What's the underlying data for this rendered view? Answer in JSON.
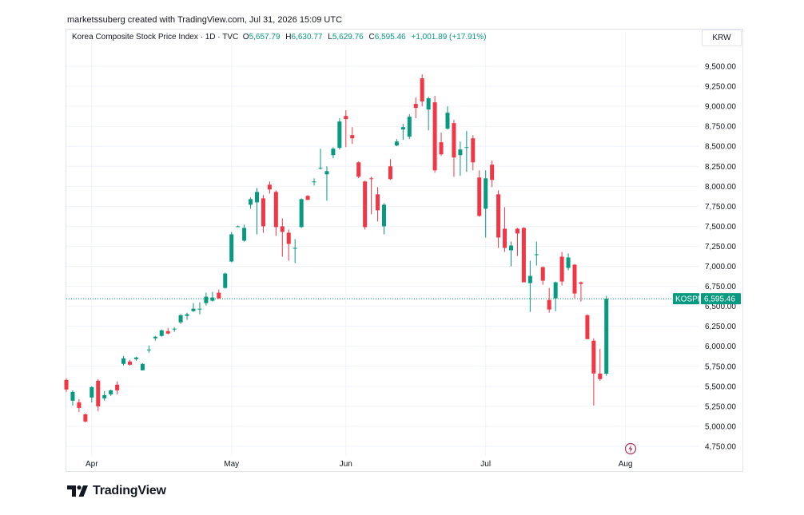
{
  "header": {
    "creator_text": "marketssuberg created with TradingView.com, Jul 31, 2026 15:09 UTC"
  },
  "legend": {
    "symbol_text": "Korea Composite Stock Price Index · 1D · TVC",
    "o_label": "O",
    "o_value": "5,657.79",
    "h_label": "H",
    "h_value": "6,630.77",
    "l_label": "L",
    "l_value": "5,629.76",
    "c_label": "C",
    "c_value": "6,595.46",
    "change": "+1,001.89 (+17.91%)"
  },
  "currency": "KRW",
  "last_price": {
    "ticker": "KOSPI",
    "value": "6,595.46",
    "color": "#089981"
  },
  "footer": {
    "brand": "TradingView"
  },
  "colors": {
    "up": "#089981",
    "down": "#f23645",
    "grid": "#f0f3fa",
    "axis_text": "#131722"
  },
  "chart_data": {
    "type": "candlestick",
    "title": "Korea Composite Stock Price Index · 1D · TVC",
    "y_unit": "KRW",
    "ylim": [
      4640,
      9730
    ],
    "y_ticks": [
      4750,
      5000,
      5250,
      5500,
      5750,
      6000,
      6250,
      6500,
      6750,
      7000,
      7250,
      7500,
      7750,
      8000,
      8250,
      8500,
      8750,
      9000,
      9250,
      9500
    ],
    "y_tick_labels": [
      "4,750.00",
      "5,000.00",
      "5,250.00",
      "5,500.00",
      "5,750.00",
      "6,000.00",
      "6,250.00",
      "6,500.00",
      "6,750.00",
      "7,000.00",
      "7,250.00",
      "7,500.00",
      "7,750.00",
      "8,000.00",
      "8,250.00",
      "8,500.00",
      "8,750.00",
      "9,000.00",
      "9,250.00",
      "9,500.00"
    ],
    "x_ticks": [
      {
        "label": "Apr",
        "index": 4
      },
      {
        "label": "May",
        "index": 26
      },
      {
        "label": "Jun",
        "index": 44
      },
      {
        "label": "Jul",
        "index": 66
      },
      {
        "label": "Aug",
        "index": 88
      }
    ],
    "candles": [
      {
        "o": 5580,
        "h": 5600,
        "l": 5430,
        "c": 5460
      },
      {
        "o": 5320,
        "h": 5450,
        "l": 5260,
        "c": 5430
      },
      {
        "o": 5300,
        "h": 5340,
        "l": 5180,
        "c": 5230
      },
      {
        "o": 5150,
        "h": 5160,
        "l": 5050,
        "c": 5060
      },
      {
        "o": 5360,
        "h": 5500,
        "l": 5300,
        "c": 5490
      },
      {
        "o": 5570,
        "h": 5590,
        "l": 5190,
        "c": 5250
      },
      {
        "o": 5350,
        "h": 5440,
        "l": 5320,
        "c": 5390
      },
      {
        "o": 5400,
        "h": 5460,
        "l": 5380,
        "c": 5450
      },
      {
        "o": 5520,
        "h": 5560,
        "l": 5400,
        "c": 5450
      },
      {
        "o": 5780,
        "h": 5880,
        "l": 5760,
        "c": 5850
      },
      {
        "o": 5810,
        "h": 5830,
        "l": 5760,
        "c": 5770
      },
      {
        "o": 5840,
        "h": 5870,
        "l": 5820,
        "c": 5860
      },
      {
        "o": 5700,
        "h": 5790,
        "l": 5700,
        "c": 5780
      },
      {
        "o": 5950,
        "h": 6010,
        "l": 5920,
        "c": 5960
      },
      {
        "o": 6100,
        "h": 6130,
        "l": 6070,
        "c": 6120
      },
      {
        "o": 6130,
        "h": 6210,
        "l": 6120,
        "c": 6200
      },
      {
        "o": 6190,
        "h": 6230,
        "l": 6150,
        "c": 6160
      },
      {
        "o": 6220,
        "h": 6240,
        "l": 6180,
        "c": 6220
      },
      {
        "o": 6300,
        "h": 6400,
        "l": 6280,
        "c": 6390
      },
      {
        "o": 6380,
        "h": 6420,
        "l": 6330,
        "c": 6400
      },
      {
        "o": 6440,
        "h": 6540,
        "l": 6430,
        "c": 6470
      },
      {
        "o": 6460,
        "h": 6550,
        "l": 6400,
        "c": 6470
      },
      {
        "o": 6540,
        "h": 6670,
        "l": 6510,
        "c": 6620
      },
      {
        "o": 6570,
        "h": 6680,
        "l": 6560,
        "c": 6610
      },
      {
        "o": 6670,
        "h": 6710,
        "l": 6590,
        "c": 6600
      },
      {
        "o": 6730,
        "h": 6920,
        "l": 6720,
        "c": 6910
      },
      {
        "o": 7060,
        "h": 7430,
        "l": 7050,
        "c": 7400
      },
      {
        "o": 7500,
        "h": 7510,
        "l": 7490,
        "c": 7500
      },
      {
        "o": 7320,
        "h": 7520,
        "l": 7310,
        "c": 7480
      },
      {
        "o": 7770,
        "h": 7860,
        "l": 7720,
        "c": 7840
      },
      {
        "o": 7800,
        "h": 7980,
        "l": 7400,
        "c": 7930
      },
      {
        "o": 7850,
        "h": 7890,
        "l": 7420,
        "c": 7500
      },
      {
        "o": 8020,
        "h": 8060,
        "l": 7910,
        "c": 7960
      },
      {
        "o": 7930,
        "h": 7950,
        "l": 7380,
        "c": 7490
      },
      {
        "o": 7500,
        "h": 7600,
        "l": 7120,
        "c": 7430
      },
      {
        "o": 7420,
        "h": 7460,
        "l": 7070,
        "c": 7280
      },
      {
        "o": 7230,
        "h": 7340,
        "l": 7040,
        "c": 7230
      },
      {
        "o": 7490,
        "h": 7850,
        "l": 7480,
        "c": 7840
      },
      {
        "o": 7880,
        "h": 7890,
        "l": 7830,
        "c": 7830
      },
      {
        "o": 8050,
        "h": 8100,
        "l": 8010,
        "c": 8060
      },
      {
        "o": 8220,
        "h": 8470,
        "l": 8210,
        "c": 8230
      },
      {
        "o": 8150,
        "h": 8250,
        "l": 7820,
        "c": 8190
      },
      {
        "o": 8390,
        "h": 8490,
        "l": 8350,
        "c": 8470
      },
      {
        "o": 8480,
        "h": 8850,
        "l": 8460,
        "c": 8810
      },
      {
        "o": 8880,
        "h": 8950,
        "l": 8490,
        "c": 8840
      },
      {
        "o": 8640,
        "h": 8740,
        "l": 8530,
        "c": 8600
      },
      {
        "o": 8300,
        "h": 8310,
        "l": 8100,
        "c": 8120
      },
      {
        "o": 8060,
        "h": 8070,
        "l": 7460,
        "c": 7490
      },
      {
        "o": 8100,
        "h": 8120,
        "l": 7650,
        "c": 8090
      },
      {
        "o": 7900,
        "h": 7990,
        "l": 7560,
        "c": 7700
      },
      {
        "o": 7500,
        "h": 7790,
        "l": 7400,
        "c": 7770
      },
      {
        "o": 8250,
        "h": 8340,
        "l": 8080,
        "c": 8090
      },
      {
        "o": 8510,
        "h": 8590,
        "l": 8500,
        "c": 8560
      },
      {
        "o": 8710,
        "h": 8780,
        "l": 8580,
        "c": 8740
      },
      {
        "o": 8620,
        "h": 8900,
        "l": 8590,
        "c": 8870
      },
      {
        "o": 9030,
        "h": 9110,
        "l": 8850,
        "c": 8980
      },
      {
        "o": 9350,
        "h": 9400,
        "l": 9000,
        "c": 9060
      },
      {
        "o": 8960,
        "h": 9120,
        "l": 8700,
        "c": 9100
      },
      {
        "o": 9050,
        "h": 9130,
        "l": 8170,
        "c": 8200
      },
      {
        "o": 8550,
        "h": 8670,
        "l": 8380,
        "c": 8400
      },
      {
        "o": 8720,
        "h": 9000,
        "l": 8710,
        "c": 8920
      },
      {
        "o": 8790,
        "h": 8830,
        "l": 8120,
        "c": 8360
      },
      {
        "o": 8390,
        "h": 8560,
        "l": 8130,
        "c": 8460
      },
      {
        "o": 8480,
        "h": 8690,
        "l": 8180,
        "c": 8490
      },
      {
        "o": 8600,
        "h": 8640,
        "l": 8200,
        "c": 8300
      },
      {
        "o": 8110,
        "h": 8200,
        "l": 7620,
        "c": 7630
      },
      {
        "o": 7720,
        "h": 8200,
        "l": 7360,
        "c": 8100
      },
      {
        "o": 8270,
        "h": 8320,
        "l": 7990,
        "c": 8080
      },
      {
        "o": 7900,
        "h": 7950,
        "l": 7230,
        "c": 7360
      },
      {
        "o": 7470,
        "h": 7740,
        "l": 7180,
        "c": 7230
      },
      {
        "o": 7200,
        "h": 7310,
        "l": 7000,
        "c": 7260
      },
      {
        "o": 7470,
        "h": 7480,
        "l": 7130,
        "c": 7410
      },
      {
        "o": 7480,
        "h": 7490,
        "l": 6820,
        "c": 6800
      },
      {
        "o": 6790,
        "h": 7070,
        "l": 6430,
        "c": 6880
      },
      {
        "o": 7140,
        "h": 7310,
        "l": 7010,
        "c": 7150
      },
      {
        "o": 6990,
        "h": 7000,
        "l": 6770,
        "c": 6820
      },
      {
        "o": 6580,
        "h": 6730,
        "l": 6420,
        "c": 6460
      },
      {
        "o": 6600,
        "h": 6810,
        "l": 6440,
        "c": 6800
      },
      {
        "o": 7120,
        "h": 7180,
        "l": 6760,
        "c": 6810
      },
      {
        "o": 6980,
        "h": 7160,
        "l": 6950,
        "c": 7110
      },
      {
        "o": 7020,
        "h": 7030,
        "l": 6600,
        "c": 6660
      },
      {
        "o": 6800,
        "h": 6810,
        "l": 6560,
        "c": 6780
      },
      {
        "o": 6390,
        "h": 6400,
        "l": 6090,
        "c": 6090
      },
      {
        "o": 6070,
        "h": 6100,
        "l": 5260,
        "c": 5660
      },
      {
        "o": 5660,
        "h": 5970,
        "l": 5570,
        "c": 5590
      },
      {
        "o": 5657.79,
        "h": 6630.77,
        "l": 5629.76,
        "c": 6595.46
      }
    ]
  }
}
